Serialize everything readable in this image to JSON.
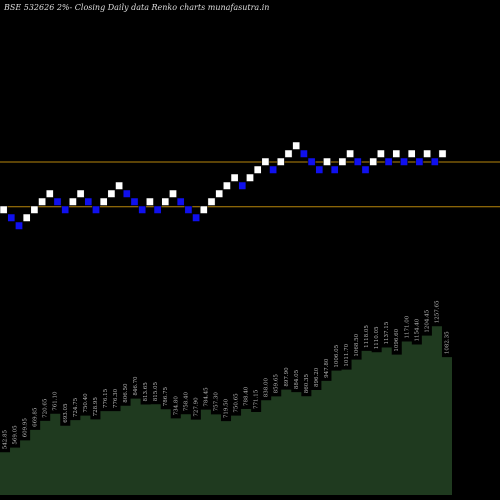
{
  "chart_data": {
    "type": "renko",
    "title": "BSE 532626  2%-  Closing Daily data  Renko  charts munafasutra.in",
    "values": [
      0,
      -1,
      -2,
      -1,
      0,
      1,
      2,
      1,
      0,
      1,
      2,
      1,
      0,
      1,
      2,
      3,
      2,
      1,
      0,
      1,
      0,
      1,
      2,
      1,
      0,
      -1,
      0,
      1,
      2,
      3,
      4,
      3,
      4,
      5,
      6,
      5,
      6,
      7,
      8,
      7,
      6,
      5,
      6,
      5,
      6,
      7,
      6,
      5,
      6,
      7,
      6,
      7,
      6,
      7,
      6,
      7,
      6,
      7
    ],
    "ylim": [
      -4,
      12
    ],
    "reference_lines": [
      6,
      0.4
    ],
    "up_color": "#ffffff",
    "down_color": "#1010ee",
    "line_color": "#b8860b",
    "price": {
      "values": [
        542.85,
        569.05,
        609.95,
        669.85,
        720.65,
        761.1,
        693.05,
        724.75,
        750.4,
        728.95,
        776.15,
        776.3,
        806.5,
        846.7,
        813.65,
        815.05,
        786.75,
        734.8,
        758.4,
        727.9,
        784.45,
        757.3,
        719.5,
        750.65,
        788.4,
        771.15,
        838,
        859.65,
        897.9,
        884.05,
        860.35,
        896.2,
        947.8,
        1006.05,
        1011.7,
        1068.5,
        1118.05,
        1110.05,
        1137.15,
        1096.6,
        1171,
        1154.4,
        1204.45,
        1257.65,
        1082.35
      ],
      "value_labels": [
        "542.85",
        "569.05",
        "609.95",
        "669.85",
        "720.65",
        "761.10",
        "693.05",
        "724.75",
        "750.40",
        "728.95",
        "776.15",
        "776.30",
        "806.50",
        "846.70",
        "813.65",
        "815.05",
        "786.75",
        "734.80",
        "758.40",
        "727.90",
        "784.45",
        "757.30",
        "719.50",
        "750.65",
        "788.40",
        "771.15",
        "838.00",
        "859.65",
        "897.90",
        "884.05",
        "860.35",
        "896.20",
        "947.80",
        "1006.05",
        "1011.70",
        "1068.50",
        "1118.05",
        "1110.05",
        "1137.15",
        "1096.60",
        "1171.00",
        "1154.40",
        "1204.45",
        "1257.65",
        "1082.35"
      ],
      "ylim": [
        300,
        1350
      ],
      "color": "#1f3a1f"
    }
  }
}
